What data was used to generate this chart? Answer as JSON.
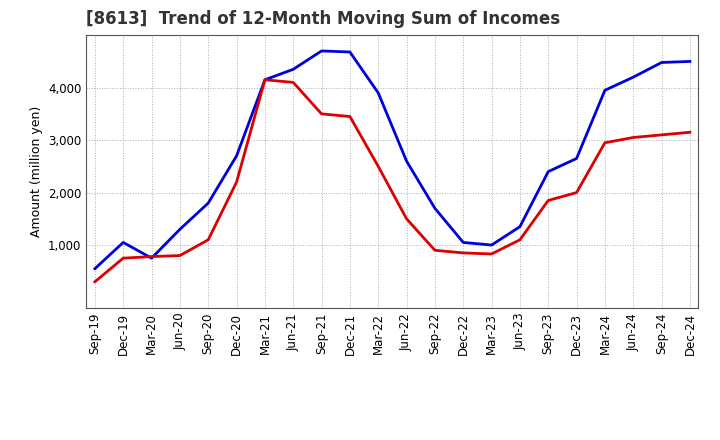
{
  "title": "[8613]  Trend of 12-Month Moving Sum of Incomes",
  "ylabel": "Amount (million yen)",
  "ylim": [
    -200,
    5000
  ],
  "yticks": [
    1000,
    2000,
    3000,
    4000
  ],
  "x_labels": [
    "Sep-19",
    "Dec-19",
    "Mar-20",
    "Jun-20",
    "Sep-20",
    "Dec-20",
    "Mar-21",
    "Jun-21",
    "Sep-21",
    "Dec-21",
    "Mar-22",
    "Jun-22",
    "Sep-22",
    "Dec-22",
    "Mar-23",
    "Jun-23",
    "Sep-23",
    "Dec-23",
    "Mar-24",
    "Jun-24",
    "Sep-24",
    "Dec-24"
  ],
  "ordinary_income": [
    550,
    1050,
    750,
    1300,
    1800,
    2700,
    4150,
    4350,
    4700,
    4680,
    3900,
    2600,
    1700,
    1050,
    1000,
    1350,
    2400,
    2650,
    3950,
    4200,
    4480,
    4500
  ],
  "net_income": [
    300,
    750,
    780,
    800,
    1100,
    2200,
    4150,
    4100,
    3500,
    3450,
    2500,
    1500,
    900,
    850,
    830,
    1100,
    1850,
    2000,
    2950,
    3050,
    3100,
    3150
  ],
  "ordinary_color": "#0000dd",
  "net_color": "#dd0000",
  "line_width": 2.0,
  "bg_color": "#ffffff",
  "plot_bg_color": "#ffffff",
  "grid_color": "#999999",
  "title_fontsize": 12,
  "title_color": "#333333",
  "label_fontsize": 9,
  "tick_fontsize": 8.5,
  "legend_fontsize": 10
}
